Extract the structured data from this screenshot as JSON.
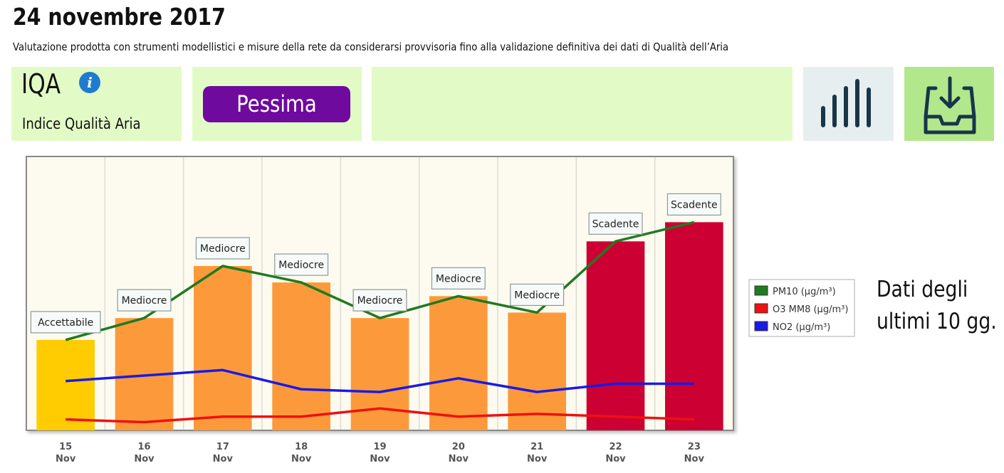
{
  "header": {
    "title": "24 novembre 2017",
    "subtitle": "Valutazione prodotta con strumenti modellistici e misure della rete da considerarsi provvisoria fino alla validazione definitiva dei dati di Qualità dell’Aria"
  },
  "iqa": {
    "label": "IQA",
    "sublabel": "Indice Qualità Aria",
    "info_icon": "info-icon",
    "level": "Pessima",
    "level_color": "#6f0a9e"
  },
  "toolbar": {
    "chart_icon": "bar-chart-icon",
    "download_icon": "download-tray-icon"
  },
  "side_note": {
    "line1": "Dati degli",
    "line2": "ultimi 10 gg."
  },
  "chart_data": {
    "type": "bar",
    "categories": [
      {
        "day": "15",
        "month": "Nov"
      },
      {
        "day": "16",
        "month": "Nov"
      },
      {
        "day": "17",
        "month": "Nov"
      },
      {
        "day": "18",
        "month": "Nov"
      },
      {
        "day": "19",
        "month": "Nov"
      },
      {
        "day": "20",
        "month": "Nov"
      },
      {
        "day": "21",
        "month": "Nov"
      },
      {
        "day": "22",
        "month": "Nov"
      },
      {
        "day": "23",
        "month": "Nov"
      }
    ],
    "bars": {
      "values": [
        33,
        41,
        60,
        54,
        41,
        49,
        43,
        69,
        76
      ],
      "classes": [
        "Accettabile",
        "Mediocre",
        "Mediocre",
        "Mediocre",
        "Mediocre",
        "Mediocre",
        "Mediocre",
        "Scadente",
        "Scadente"
      ],
      "colors": {
        "Accettabile": "#fecc00",
        "Mediocre": "#fc9a3b",
        "Scadente": "#cc0033"
      }
    },
    "series": [
      {
        "name": "PM10 (µg/m³)",
        "color": "#1f7a1f",
        "values": [
          33,
          41,
          60,
          54,
          41,
          49,
          43,
          69,
          76
        ]
      },
      {
        "name": "O3 MM8 (µg/m³)",
        "color": "#ee1111",
        "values": [
          4,
          3,
          5,
          5,
          8,
          5,
          6,
          5,
          4
        ]
      },
      {
        "name": "NO2 (µg/m³)",
        "color": "#1a1ae6",
        "values": [
          18,
          20,
          22,
          15,
          14,
          19,
          14,
          17,
          17
        ]
      }
    ],
    "ylim": [
      0,
      100
    ],
    "title": "",
    "xlabel": "",
    "ylabel": ""
  }
}
